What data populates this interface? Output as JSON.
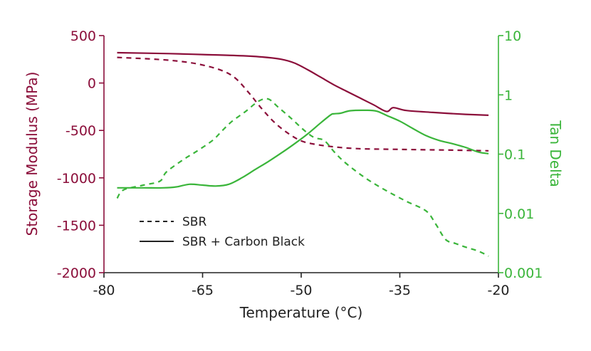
{
  "colors": {
    "left_axis": "#8b0e3a",
    "right_axis": "#3ab53a",
    "x_axis": "#222222"
  },
  "chart_data": {
    "type": "line",
    "title": "",
    "xlabel": "Temperature (°C)",
    "ylabel_left": "Storage Modulus (MPa)",
    "ylabel_right": "Tan Delta",
    "xlim": [
      -80,
      -20
    ],
    "ylim_left": [
      -2000,
      500
    ],
    "ylim_right": [
      0.001,
      10
    ],
    "right_axis_scale": "log",
    "grid": false,
    "legend_position": "bottom-left",
    "x_ticks": [
      "-80",
      "-65",
      "-50",
      "-35",
      "-20"
    ],
    "x_tick_values": [
      -80,
      -65,
      -50,
      -35,
      -20
    ],
    "left_ticks": [
      "500",
      "0",
      "-500",
      "-1000",
      "-1500",
      "-2000"
    ],
    "left_tick_values": [
      500,
      0,
      -500,
      -1000,
      -1500,
      -2000
    ],
    "right_ticks": [
      "10",
      "1",
      "0.1",
      "0.01",
      "0.001"
    ],
    "right_tick_values": [
      10,
      1,
      0.1,
      0.01,
      0.001
    ],
    "legend": [
      {
        "label": "SBR",
        "style": "dashed"
      },
      {
        "label": "SBR + Carbon Black",
        "style": "solid"
      }
    ],
    "series": [
      {
        "material": "SBR",
        "quantity": "storage modulus",
        "axis": "left",
        "style": "dashed",
        "x": [
          -78,
          -72,
          -68,
          -65,
          -62,
          -60,
          -58,
          -56,
          -54,
          -52,
          -50,
          -48,
          -46,
          -44,
          -42,
          -40,
          -35,
          -30,
          -25,
          -21.5
        ],
        "y": [
          270,
          250,
          225,
          190,
          130,
          50,
          -100,
          -270,
          -420,
          -530,
          -610,
          -645,
          -665,
          -680,
          -690,
          -695,
          -700,
          -705,
          -710,
          -715
        ]
      },
      {
        "material": "SBR + Carbon Black",
        "quantity": "storage modulus",
        "axis": "left",
        "style": "solid",
        "x": [
          -78,
          -70,
          -65,
          -60,
          -56,
          -53,
          -51,
          -49,
          -47,
          -45,
          -43,
          -41,
          -39,
          -37,
          -36,
          -34,
          -30,
          -25,
          -21.5
        ],
        "y": [
          320,
          310,
          300,
          290,
          275,
          250,
          210,
          140,
          60,
          -20,
          -90,
          -160,
          -230,
          -300,
          -260,
          -290,
          -310,
          -330,
          -340
        ]
      },
      {
        "material": "SBR",
        "quantity": "tan delta",
        "axis": "right",
        "style": "dashed",
        "x": [
          -78,
          -77,
          -74,
          -71.5,
          -70.5,
          -68,
          -66,
          -63.5,
          -62,
          -60.5,
          -58.5,
          -56.5,
          -55,
          -53.5,
          -51.5,
          -49.5,
          -48,
          -46.5,
          -45,
          -43.5,
          -41.5,
          -39.5,
          -37,
          -34,
          -31,
          -29.5,
          -28,
          -26.5,
          -25,
          -23,
          -21.5
        ],
        "y": [
          0.018,
          0.025,
          0.03,
          0.035,
          0.05,
          0.08,
          0.11,
          0.17,
          0.25,
          0.36,
          0.52,
          0.78,
          0.85,
          0.62,
          0.4,
          0.25,
          0.19,
          0.17,
          0.11,
          0.075,
          0.05,
          0.035,
          0.024,
          0.016,
          0.011,
          0.0065,
          0.0036,
          0.0031,
          0.0027,
          0.0023,
          0.0019
        ]
      },
      {
        "material": "SBR + Carbon Black",
        "quantity": "tan delta",
        "axis": "right",
        "style": "solid",
        "x": [
          -78,
          -74,
          -71,
          -69,
          -67,
          -65,
          -63,
          -61,
          -59,
          -57,
          -55,
          -53,
          -51,
          -49,
          -47,
          -45.5,
          -45,
          -44,
          -42.5,
          -40,
          -38.5,
          -37,
          -35,
          -33,
          -31,
          -29,
          -27,
          -25,
          -23,
          -21.5
        ],
        "y": [
          0.027,
          0.027,
          0.027,
          0.028,
          0.031,
          0.03,
          0.029,
          0.031,
          0.04,
          0.055,
          0.075,
          0.105,
          0.15,
          0.22,
          0.34,
          0.46,
          0.48,
          0.49,
          0.54,
          0.55,
          0.53,
          0.45,
          0.36,
          0.27,
          0.205,
          0.17,
          0.15,
          0.13,
          0.108,
          0.102
        ]
      }
    ]
  }
}
